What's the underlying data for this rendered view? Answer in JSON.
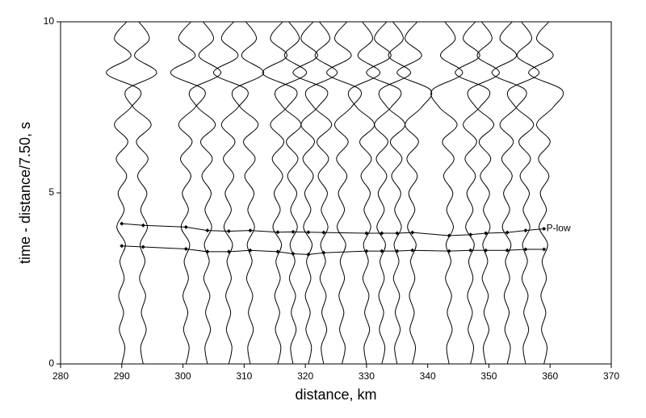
{
  "chart_data": {
    "type": "record-section",
    "xlabel": "distance, km",
    "ylabel": "time - distance/7.50, s",
    "xlim": [
      280,
      370
    ],
    "ylim": [
      0,
      10
    ],
    "xticks": [
      280,
      290,
      300,
      310,
      320,
      330,
      340,
      350,
      360,
      370
    ],
    "yticks": [
      0,
      5,
      10
    ],
    "color": "#000000",
    "y": [
      0,
      0.5,
      1,
      1.5,
      2,
      2.5,
      3,
      3.5,
      4,
      4.5,
      5,
      5.5,
      6,
      6.5,
      7,
      7.5,
      8,
      8.5,
      9,
      9.5,
      10
    ],
    "traces": [
      {
        "x": [
          290,
          290.5,
          289.6,
          290.3,
          289.5,
          290.4,
          289.7,
          290.6,
          289.2,
          290.4,
          289.4,
          290.8,
          289.1,
          291,
          288.8,
          291.5,
          293,
          287.5,
          291.5,
          288.8,
          290.8
        ]
      },
      {
        "x": [
          293.5,
          293.1,
          294,
          293.2,
          293.9,
          292.9,
          293.8,
          293,
          294.2,
          293.1,
          294.1,
          292.6,
          294.3,
          292.4,
          294.8,
          291.9,
          290.7,
          295.7,
          292.1,
          294.5,
          292.8
        ]
      },
      {
        "x": [
          300.5,
          301,
          300.1,
          300.8,
          300,
          300.9,
          300.2,
          301.1,
          299.7,
          300.9,
          299.9,
          301.3,
          299.6,
          301.5,
          299.3,
          302,
          303.5,
          298,
          302,
          299.3,
          301.3
        ]
      },
      {
        "x": [
          304,
          303.6,
          304.5,
          303.7,
          304.4,
          303.4,
          304.3,
          303.5,
          304.7,
          303.6,
          304.6,
          303.1,
          304.8,
          302.9,
          305.3,
          302.4,
          301.2,
          306.2,
          302.6,
          305,
          303.3
        ]
      },
      {
        "x": [
          307.5,
          308,
          307.1,
          307.8,
          307,
          307.9,
          307.2,
          308.1,
          306.7,
          307.9,
          306.9,
          308.3,
          306.6,
          308.5,
          306.3,
          309,
          310.5,
          305,
          309,
          306.3,
          308.3
        ]
      },
      {
        "x": [
          311,
          310.6,
          311.5,
          310.7,
          311.4,
          310.4,
          311.3,
          310.5,
          311.7,
          310.6,
          311.6,
          310.1,
          311.8,
          309.9,
          312.3,
          309.4,
          308.2,
          313.2,
          309.6,
          312,
          310.3
        ]
      },
      {
        "x": [
          315.5,
          316,
          315.1,
          315.8,
          315,
          315.9,
          315.2,
          316.1,
          314.7,
          315.9,
          314.9,
          316.3,
          314.6,
          316.5,
          314.3,
          317,
          318.5,
          313,
          317,
          314.3,
          316.3
        ]
      },
      {
        "x": [
          318,
          317.6,
          318.5,
          317.7,
          318.4,
          317.4,
          318.3,
          317.5,
          318.7,
          317.6,
          318.6,
          317.1,
          318.8,
          316.9,
          319.3,
          316.4,
          315.2,
          320.2,
          316.6,
          319,
          317.3
        ]
      },
      {
        "x": [
          320.5,
          321,
          320.1,
          320.8,
          320,
          320.9,
          320.2,
          321.1,
          319.7,
          320.9,
          319.9,
          321.3,
          319.6,
          321.5,
          319.3,
          322,
          323.5,
          318,
          322,
          319.3,
          321.3
        ]
      },
      {
        "x": [
          323,
          322.6,
          323.5,
          322.7,
          323.4,
          322.4,
          323.3,
          322.5,
          323.7,
          322.6,
          323.6,
          322.1,
          323.8,
          321.9,
          324.3,
          321.4,
          320.2,
          325.2,
          321.6,
          324,
          322.3
        ]
      },
      {
        "x": [
          326,
          326.5,
          325.6,
          326.3,
          325.5,
          326.4,
          325.7,
          326.6,
          325.2,
          326.4,
          325.4,
          326.8,
          325.1,
          327,
          324.8,
          327.5,
          329,
          323.5,
          327.5,
          324.8,
          326.8
        ]
      },
      {
        "x": [
          330,
          329.6,
          330.5,
          329.7,
          330.4,
          329.4,
          330.3,
          329.5,
          330.7,
          329.6,
          330.6,
          329.1,
          330.8,
          328.9,
          331.3,
          328.4,
          327.2,
          332.2,
          328.6,
          331,
          329.3
        ]
      },
      {
        "x": [
          332.5,
          333,
          332.1,
          332.8,
          332,
          332.9,
          332.2,
          333.1,
          331.7,
          332.9,
          331.9,
          333.3,
          331.6,
          333.5,
          331.3,
          334,
          335.5,
          330,
          334,
          331.3,
          333.3
        ]
      },
      {
        "x": [
          335,
          334.6,
          335.5,
          334.7,
          335.4,
          334.4,
          335.3,
          334.5,
          335.7,
          334.6,
          335.6,
          334.1,
          335.8,
          333.9,
          336.3,
          333.4,
          332.2,
          337.2,
          333.6,
          336,
          334.3
        ]
      },
      {
        "x": [
          337.5,
          338,
          337.1,
          337.8,
          337,
          337.9,
          337.2,
          338.1,
          336.7,
          337.9,
          336.9,
          338.3,
          336.6,
          338.5,
          336.3,
          339,
          340.5,
          335,
          339,
          336.3,
          338.3
        ]
      },
      {
        "x": [
          343.5,
          343.1,
          344,
          343.2,
          343.9,
          342.9,
          343.8,
          343,
          344.2,
          343.1,
          344.1,
          342.6,
          344.3,
          342.4,
          344.8,
          341.9,
          340.7,
          345.7,
          342.1,
          344.5,
          342.8
        ]
      },
      {
        "x": [
          347,
          347.5,
          346.6,
          347.3,
          346.5,
          347.4,
          346.7,
          347.6,
          346.2,
          347.4,
          346.4,
          347.8,
          346.1,
          348,
          345.8,
          348.5,
          350,
          344.5,
          348.5,
          345.8,
          347.8
        ]
      },
      {
        "x": [
          349.5,
          349.1,
          350,
          349.2,
          349.9,
          348.9,
          349.8,
          349,
          350.2,
          349.1,
          350.1,
          348.6,
          350.3,
          348.4,
          350.8,
          347.9,
          346.7,
          351.7,
          348.1,
          350.5,
          348.8
        ]
      },
      {
        "x": [
          353,
          353.5,
          352.6,
          353.3,
          352.5,
          353.4,
          352.7,
          353.6,
          352.2,
          353.4,
          352.4,
          353.8,
          352.1,
          354,
          351.8,
          354.5,
          356,
          350.5,
          354.5,
          351.8,
          353.8
        ]
      },
      {
        "x": [
          356,
          355.6,
          356.5,
          355.7,
          356.4,
          355.4,
          356.3,
          355.5,
          356.7,
          355.6,
          356.6,
          355.1,
          356.8,
          354.9,
          357.3,
          354.4,
          353.2,
          358.2,
          354.6,
          357,
          355.3
        ]
      },
      {
        "x": [
          359,
          359.5,
          358.6,
          359.3,
          358.5,
          359.4,
          358.7,
          359.6,
          358.2,
          359.4,
          358.4,
          359.8,
          358.1,
          360,
          357.8,
          360.5,
          362,
          356.5,
          360.5,
          357.8,
          359.8
        ]
      }
    ],
    "picks": [
      {
        "name": "P-low",
        "x": [
          290,
          293.5,
          300.5,
          304,
          307.5,
          311,
          315.5,
          318,
          320.5,
          323,
          330,
          332.5,
          335,
          337.5,
          343.5,
          347,
          349.5,
          353,
          356,
          359
        ],
        "y": [
          4.1,
          4.05,
          4.0,
          3.9,
          3.88,
          3.9,
          3.85,
          3.86,
          3.85,
          3.84,
          3.82,
          3.82,
          3.82,
          3.84,
          3.75,
          3.78,
          3.82,
          3.84,
          3.9,
          3.95
        ]
      },
      {
        "x": [
          290,
          293.5,
          300.5,
          304,
          307.5,
          311,
          315.5,
          318,
          320.5,
          323,
          330,
          332.5,
          335,
          337.5,
          343.5,
          347,
          349.5,
          353,
          356,
          359
        ],
        "y": [
          3.45,
          3.42,
          3.36,
          3.28,
          3.28,
          3.32,
          3.28,
          3.22,
          3.2,
          3.25,
          3.3,
          3.3,
          3.3,
          3.32,
          3.3,
          3.32,
          3.32,
          3.32,
          3.35,
          3.35
        ]
      }
    ]
  }
}
